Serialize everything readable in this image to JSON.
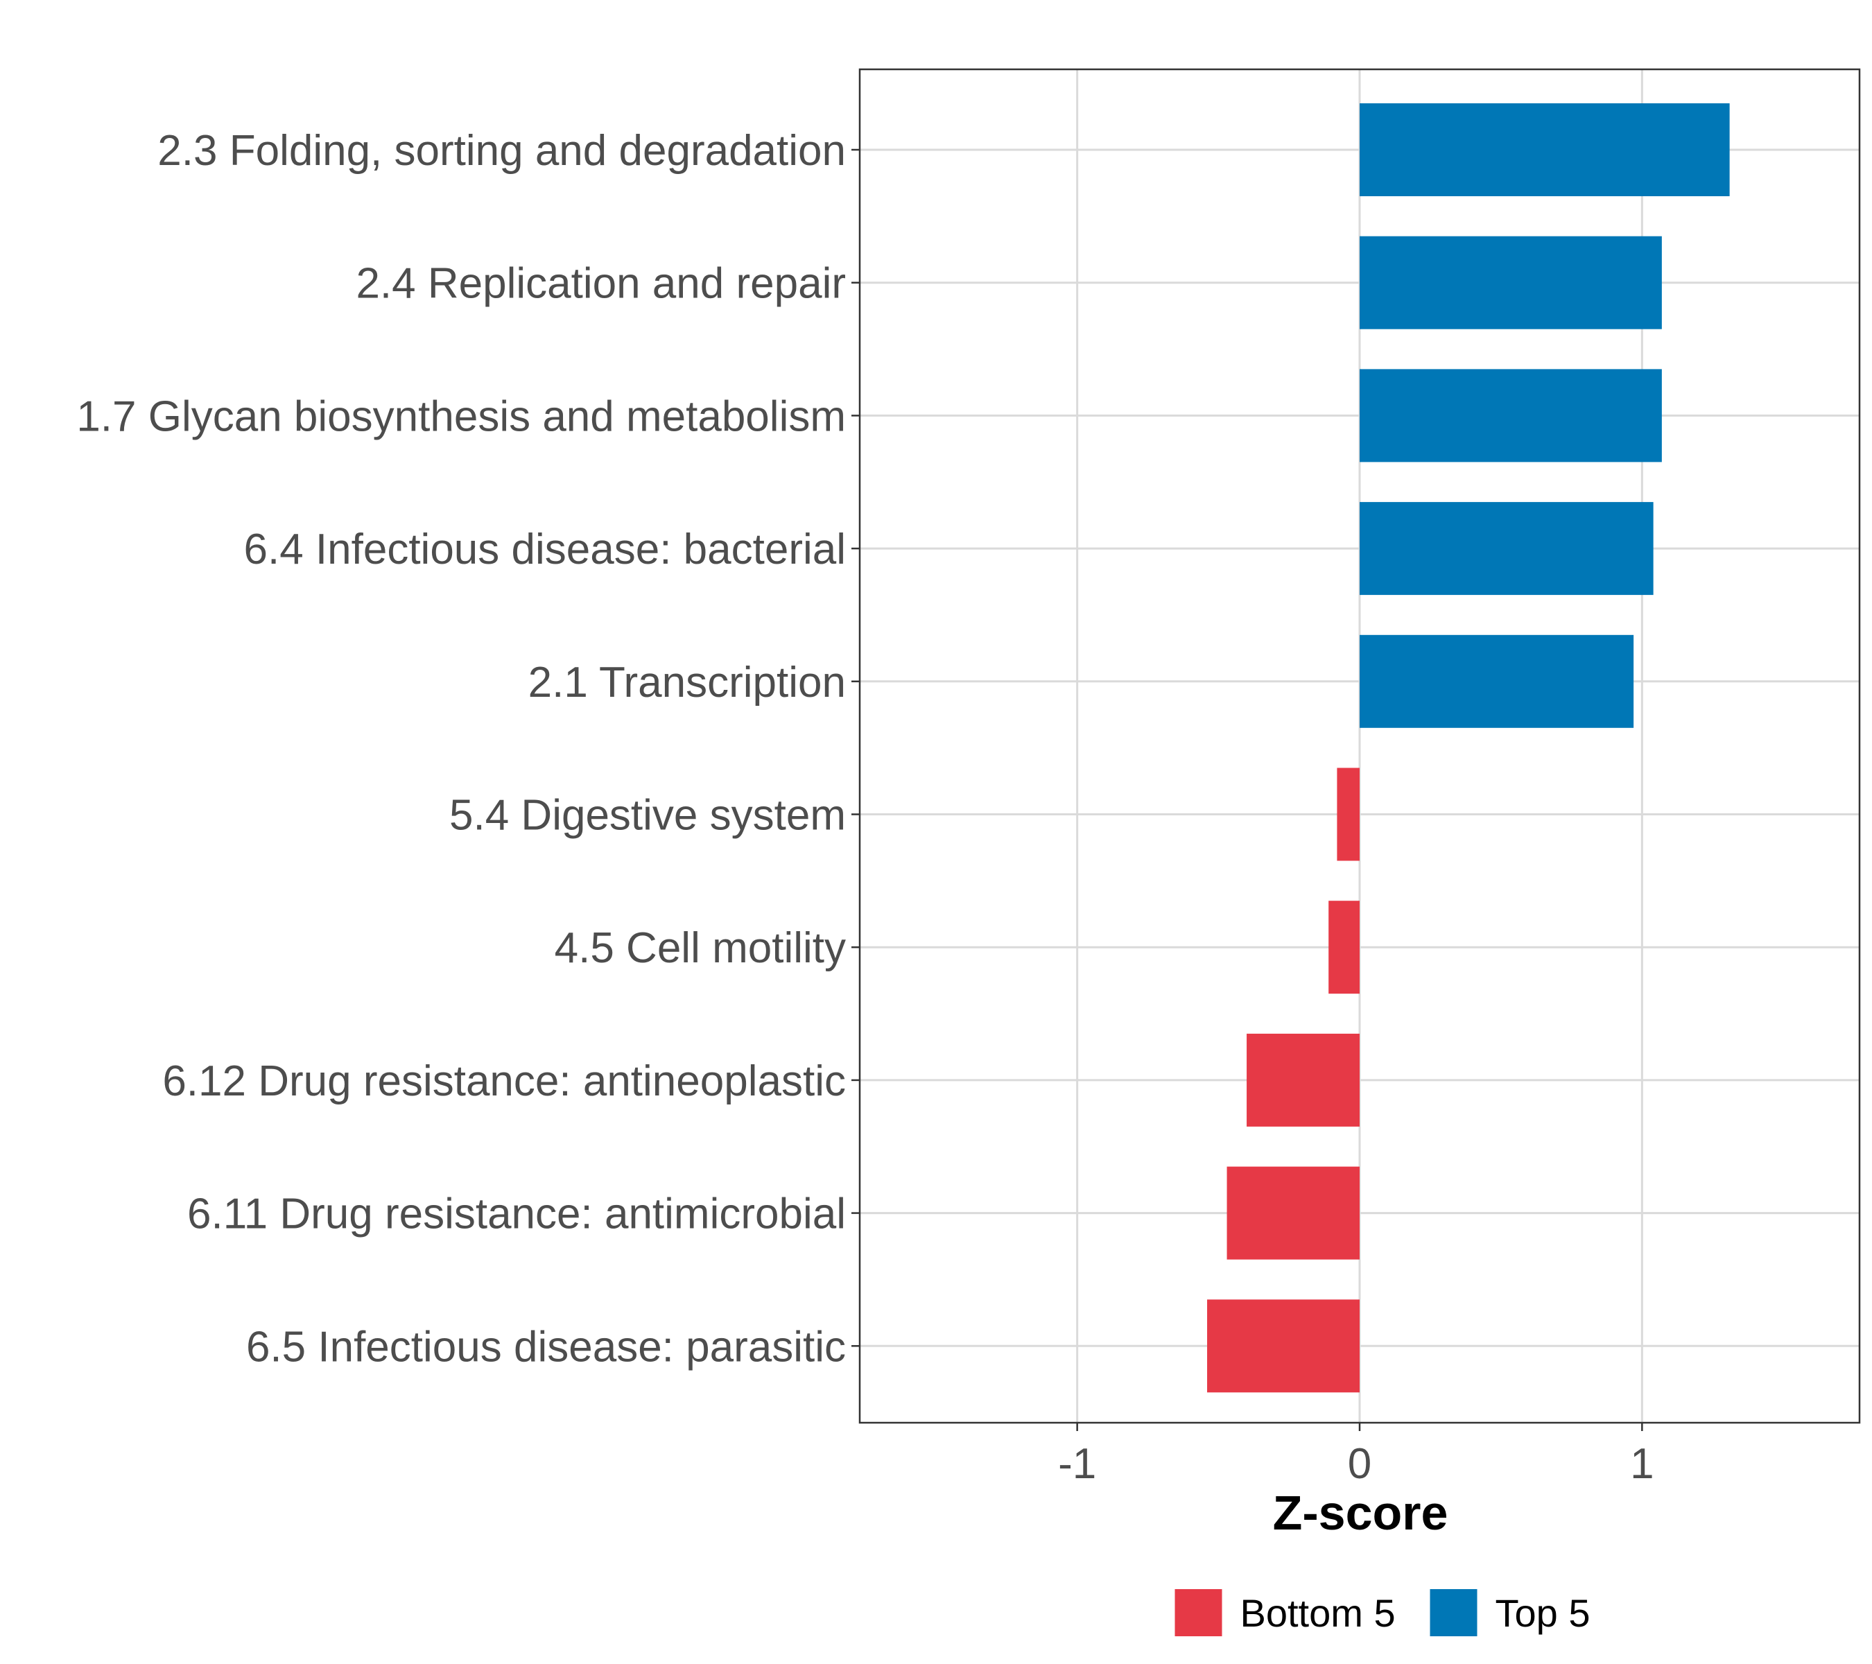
{
  "chart_data": {
    "type": "bar",
    "orientation": "horizontal",
    "title": "",
    "xlabel": "Z-score",
    "ylabel": "",
    "xlim": [
      -1.77,
      1.77
    ],
    "xticks": [
      -1,
      0,
      1
    ],
    "xtick_labels": [
      "-1",
      "0",
      "1"
    ],
    "grid": true,
    "legend_position": "bottom",
    "categories": [
      "2.3 Folding, sorting and degradation",
      "2.4 Replication and repair",
      "1.7 Glycan biosynthesis and metabolism",
      "6.4 Infectious disease: bacterial",
      "2.1 Transcription",
      "5.4 Digestive system",
      "4.5 Cell motility",
      "6.12 Drug resistance: antineoplastic",
      "6.11 Drug resistance: antimicrobial",
      "6.5 Infectious disease: parasitic"
    ],
    "values": [
      1.31,
      1.07,
      1.07,
      1.04,
      0.97,
      -0.08,
      -0.11,
      -0.4,
      -0.47,
      -0.54
    ],
    "groups": [
      "Top 5",
      "Top 5",
      "Top 5",
      "Top 5",
      "Top 5",
      "Bottom 5",
      "Bottom 5",
      "Bottom 5",
      "Bottom 5",
      "Bottom 5"
    ],
    "legend": [
      {
        "name": "Bottom 5",
        "color": "#e63946"
      },
      {
        "name": "Top 5",
        "color": "#0077b6"
      }
    ]
  }
}
